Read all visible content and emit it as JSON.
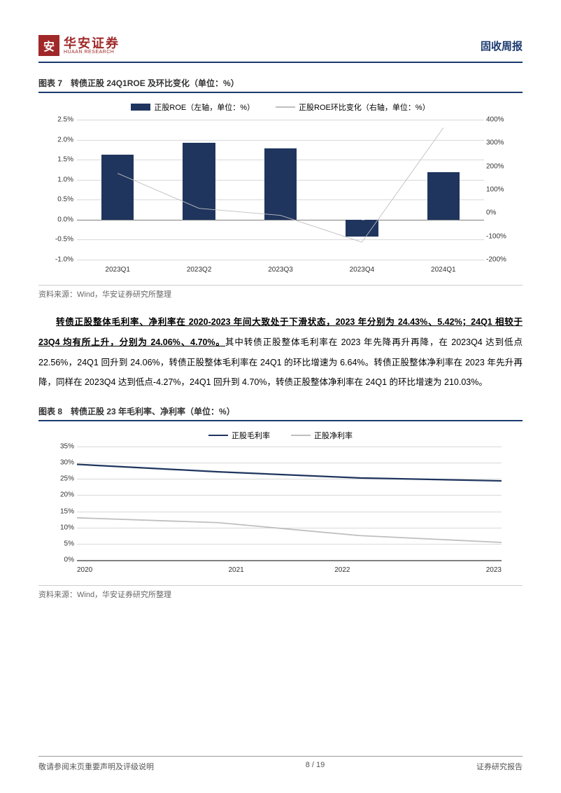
{
  "header": {
    "logo_cn": "华安证券",
    "logo_en": "HUAAN RESEARCH",
    "right": "固收周报"
  },
  "figure7": {
    "title": "图表 7　转债正股 24Q1ROE 及环比变化（单位：%）",
    "legend": [
      {
        "label": "正股ROE（左轴，单位：%）",
        "color": "#1f355e",
        "type": "bar"
      },
      {
        "label": "正股ROE环比变化（右轴，单位：%）",
        "color": "#bfbfbf",
        "type": "line"
      }
    ],
    "categories": [
      "2023Q1",
      "2023Q2",
      "2023Q3",
      "2023Q4",
      "2024Q1"
    ],
    "bar_values": [
      1.63,
      1.92,
      1.78,
      -0.42,
      1.18
    ],
    "bar_color": "#1f355e",
    "line_values": [
      170,
      20,
      -10,
      -125,
      365
    ],
    "line_color": "#bfbfbf",
    "y_left": {
      "min": -1.0,
      "max": 2.5,
      "step": 0.5,
      "suffix": "%"
    },
    "y_right": {
      "min": -200,
      "max": 400,
      "step": 100,
      "suffix": "%"
    },
    "grid_color": "#d9d9d9",
    "zero_color": "#808080",
    "source": "资料来源：Wind，华安证券研究所整理"
  },
  "body_para": {
    "t1": "转债正股整体毛利率、净利率在 2020-2023 年间大致处于下滑状态，2023 年分别为 24.43%、5.42%；24Q1 相较于 23Q4 均有所上升，分别为 24.06%、4.70%。",
    "t2": "其中转债正股整体毛利率在 2023 年先降再升再降，在 2023Q4 达到低点 22.56%，24Q1 回升到 24.06%，转债正股整体毛利率在 24Q1 的环比增速为 6.64%。转债正股整体净利率在 2023 年先升再降，同样在 2023Q4 达到低点-4.27%，24Q1 回升到 4.70%，转债正股整体净利率在 24Q1 的环比增速为 210.03%。"
  },
  "figure8": {
    "title": "图表 8　转债正股 23 年毛利率、净利率（单位：%）",
    "legend": [
      {
        "label": "正股毛利率",
        "color": "#1f355e"
      },
      {
        "label": "正股净利率",
        "color": "#bfbfbf"
      }
    ],
    "x": [
      "2020",
      "2021",
      "2022",
      "2023"
    ],
    "series1": [
      29.5,
      27.2,
      25.3,
      24.4
    ],
    "series2": [
      13.0,
      11.5,
      7.5,
      5.4
    ],
    "series1_color": "#1f355e",
    "series2_color": "#bfbfbf",
    "y": {
      "min": 0,
      "max": 35,
      "step": 5,
      "suffix": "%"
    },
    "grid_color": "#d9d9d9",
    "source": "资料来源：Wind，华安证券研究所整理"
  },
  "footer": {
    "left": "敬请参阅末页重要声明及评级说明",
    "center": "8 / 19",
    "right": "证券研究报告"
  }
}
